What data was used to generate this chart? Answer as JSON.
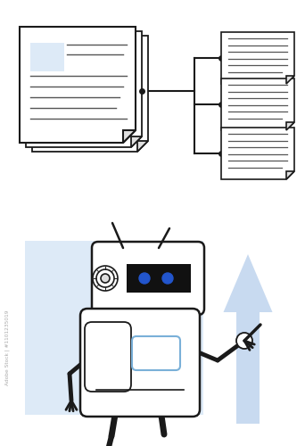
{
  "bg_color": "#ffffff",
  "light_blue": "#ddeaf7",
  "line_color": "#1a1a1a",
  "robot_bg": "#ddeaf7",
  "arrow_color": "#c8daf0",
  "eye_color": "#2255cc",
  "btn_color": "#7ab0d8",
  "watermark_color": "#cccccc",
  "doc_line_color": "#555555",
  "fold_color": "#e0e0e0"
}
